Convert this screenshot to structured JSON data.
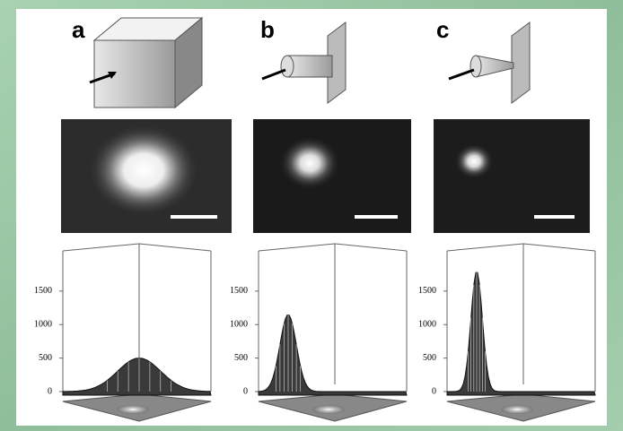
{
  "chart_data": [
    {
      "type": "surface",
      "label": "a",
      "ylim": [
        0,
        2100
      ],
      "yticks": [
        0,
        500,
        1000,
        1500
      ],
      "values": [
        500
      ]
    },
    {
      "type": "surface",
      "label": "b",
      "ylim": [
        0,
        2100
      ],
      "yticks": [
        0,
        500,
        1000,
        1500
      ],
      "values": [
        1150
      ]
    },
    {
      "type": "surface",
      "label": "c",
      "ylim": [
        0,
        2100
      ],
      "yticks": [
        0,
        500,
        1000,
        1500
      ],
      "values": [
        1800
      ]
    }
  ]
}
